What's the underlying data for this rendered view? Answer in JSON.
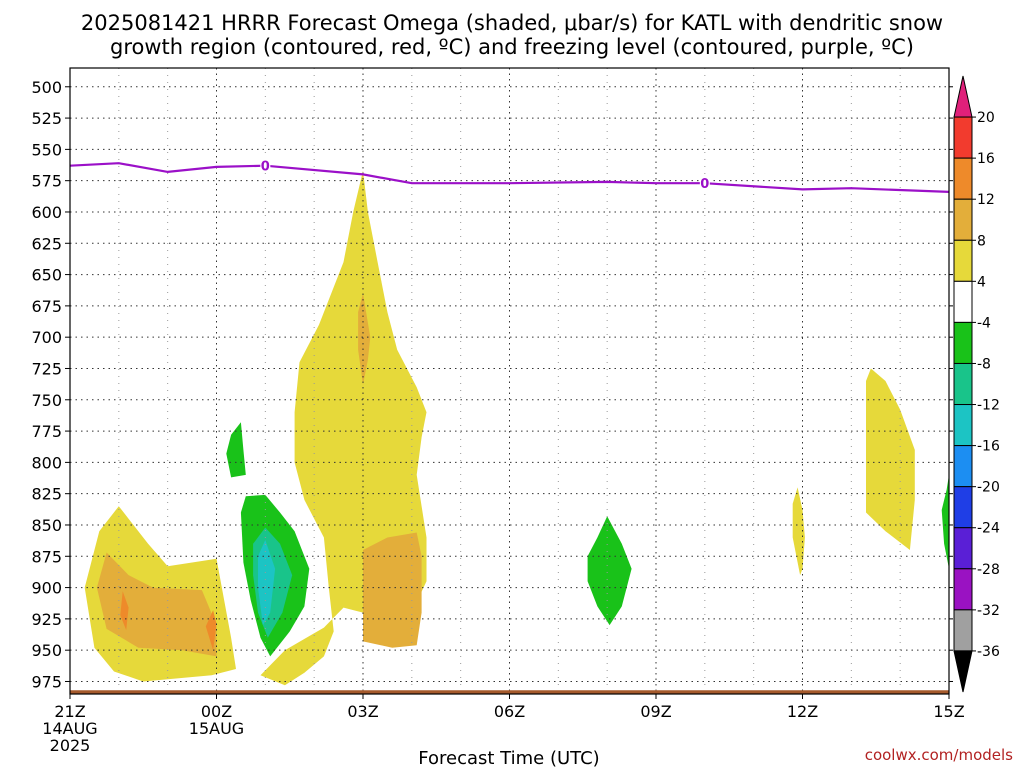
{
  "chart_data": {
    "type": "heatmap",
    "title_lines": [
      "2025081421 HRRR Forecast Omega (shaded, μbar/s) for KATL with dendritic snow",
      "growth region (contoured, red, ºC) and freezing level (contoured, purple, ºC)"
    ],
    "xlabel": "Forecast Time (UTC)",
    "credit": "coolwx.com/models",
    "x_ticks": [
      {
        "h": 0,
        "lines": [
          "21Z",
          "14AUG",
          "2025"
        ]
      },
      {
        "h": 3,
        "lines": [
          "00Z",
          "15AUG"
        ]
      },
      {
        "h": 6,
        "lines": [
          "03Z"
        ]
      },
      {
        "h": 9,
        "lines": [
          "06Z"
        ]
      },
      {
        "h": 12,
        "lines": [
          "09Z"
        ]
      },
      {
        "h": 15,
        "lines": [
          "12Z"
        ]
      },
      {
        "h": 18,
        "lines": [
          "15Z"
        ]
      }
    ],
    "y_ticks": [
      500,
      525,
      550,
      575,
      600,
      625,
      650,
      675,
      700,
      725,
      750,
      775,
      800,
      825,
      850,
      875,
      900,
      925,
      950,
      975
    ],
    "xlim_hours": [
      0,
      18
    ],
    "ylim_hpa": [
      485,
      985
    ],
    "grid": true,
    "colorbar": {
      "labels": [
        "20",
        "16",
        "12",
        "8",
        "4",
        "-4",
        "-8",
        "-12",
        "-16",
        "-20",
        "-24",
        "-28",
        "-32",
        "-36"
      ],
      "colors": [
        "#e0207a",
        "#f23b2e",
        "#ee8a2a",
        "#e3ae3a",
        "#e6d93a",
        "#ffffff",
        "#19c219",
        "#19c48a",
        "#1cc4c4",
        "#1c8ef2",
        "#1f3ee6",
        "#5a1fd6",
        "#9a12c2",
        "#a0a0a0",
        "#000000"
      ]
    },
    "freezing_level": {
      "color": "#9b10c8",
      "label": "0",
      "points": [
        [
          0,
          563
        ],
        [
          1,
          561
        ],
        [
          2,
          568
        ],
        [
          3,
          564
        ],
        [
          4,
          563
        ],
        [
          6,
          570
        ],
        [
          7,
          577
        ],
        [
          9,
          577
        ],
        [
          11,
          576
        ],
        [
          12,
          577
        ],
        [
          13,
          577
        ],
        [
          15,
          582
        ],
        [
          16,
          581
        ],
        [
          18,
          584
        ]
      ],
      "label_points": [
        [
          4,
          563
        ],
        [
          13,
          577
        ]
      ]
    },
    "omega_regions": [
      {
        "level": "4 to 8",
        "color": "#e6d93a",
        "points": [
          [
            0.3,
            900
          ],
          [
            0.6,
            855
          ],
          [
            1,
            835
          ],
          [
            1.6,
            865
          ],
          [
            2,
            883
          ],
          [
            3,
            877
          ],
          [
            3.3,
            940
          ],
          [
            3.4,
            965
          ],
          [
            2.9,
            970
          ],
          [
            1.5,
            975
          ],
          [
            0.9,
            967
          ],
          [
            0.5,
            948
          ]
        ]
      },
      {
        "level": "8 to 12",
        "color": "#e3ae3a",
        "points": [
          [
            0.55,
            900
          ],
          [
            0.75,
            872
          ],
          [
            1.2,
            890
          ],
          [
            1.7,
            900
          ],
          [
            2.7,
            902
          ],
          [
            3,
            930
          ],
          [
            3,
            955
          ],
          [
            2.3,
            950
          ],
          [
            1.4,
            948
          ],
          [
            0.75,
            933
          ]
        ]
      },
      {
        "level": "12 to 16",
        "color": "#ee8a2a",
        "points": [
          [
            1.08,
            903
          ],
          [
            1.2,
            916
          ],
          [
            1.15,
            934
          ],
          [
            1.03,
            922
          ]
        ]
      },
      {
        "level": "12 to 16",
        "color": "#ee8a2a",
        "points": [
          [
            2.93,
            918
          ],
          [
            3,
            929
          ],
          [
            2.93,
            950
          ],
          [
            2.78,
            931
          ]
        ]
      },
      {
        "level": "4 to 8",
        "color": "#e6d93a",
        "points": [
          [
            3.9,
            970
          ],
          [
            4.4,
            950
          ],
          [
            5.2,
            932
          ],
          [
            5.6,
            916
          ],
          [
            6,
            920
          ],
          [
            6.4,
            935
          ],
          [
            6.9,
            928
          ],
          [
            7.3,
            895
          ],
          [
            7.3,
            860
          ],
          [
            7.2,
            835
          ],
          [
            7.1,
            810
          ],
          [
            7.2,
            780
          ],
          [
            7.3,
            760
          ],
          [
            7.1,
            740
          ],
          [
            6.7,
            710
          ],
          [
            6.5,
            680
          ],
          [
            6.3,
            640
          ],
          [
            6.1,
            600
          ],
          [
            6,
            567
          ],
          [
            5.8,
            600
          ],
          [
            5.6,
            640
          ],
          [
            5.1,
            690
          ],
          [
            4.7,
            720
          ],
          [
            4.6,
            760
          ],
          [
            4.6,
            800
          ],
          [
            4.8,
            830
          ],
          [
            5.2,
            860
          ],
          [
            5.3,
            900
          ],
          [
            5.4,
            935
          ],
          [
            5.2,
            955
          ],
          [
            4.8,
            968
          ],
          [
            4.4,
            978
          ]
        ]
      },
      {
        "level": "8 to 12",
        "color": "#e3ae3a",
        "points": [
          [
            5.9,
            680
          ],
          [
            6,
            665
          ],
          [
            6.15,
            700
          ],
          [
            6.1,
            718
          ],
          [
            6,
            738
          ],
          [
            5.9,
            710
          ]
        ]
      },
      {
        "level": "8 to 12",
        "color": "#e3ae3a",
        "points": [
          [
            6,
            870
          ],
          [
            6.5,
            860
          ],
          [
            7.1,
            856
          ],
          [
            7.2,
            875
          ],
          [
            7.2,
            920
          ],
          [
            7.1,
            946
          ],
          [
            6.6,
            948
          ],
          [
            6,
            943
          ]
        ]
      },
      {
        "level": "4 to 8",
        "color": "#e6d93a",
        "points": [
          [
            14.8,
            833
          ],
          [
            14.9,
            820
          ],
          [
            15,
            838
          ],
          [
            15.05,
            860
          ],
          [
            15,
            885
          ],
          [
            14.95,
            890
          ],
          [
            14.8,
            860
          ]
        ]
      },
      {
        "level": "4 to 8",
        "color": "#e6d93a",
        "points": [
          [
            16.3,
            735
          ],
          [
            16.4,
            725
          ],
          [
            16.7,
            735
          ],
          [
            17,
            758
          ],
          [
            17.3,
            790
          ],
          [
            17.3,
            830
          ],
          [
            17.2,
            870
          ],
          [
            16.7,
            855
          ],
          [
            16.3,
            840
          ]
        ]
      },
      {
        "level": "-4 to -8",
        "color": "#19c219",
        "points": [
          [
            3.2,
            793
          ],
          [
            3.3,
            778
          ],
          [
            3.5,
            768
          ],
          [
            3.55,
            790
          ],
          [
            3.6,
            810
          ],
          [
            3.3,
            812
          ]
        ]
      },
      {
        "level": "-4 to -8",
        "color": "#19c219",
        "points": [
          [
            3.5,
            840
          ],
          [
            3.6,
            827
          ],
          [
            4,
            826
          ],
          [
            4.3,
            840
          ],
          [
            4.6,
            855
          ],
          [
            4.9,
            885
          ],
          [
            4.8,
            915
          ],
          [
            4.5,
            935
          ],
          [
            4.1,
            955
          ],
          [
            3.9,
            940
          ],
          [
            3.7,
            910
          ],
          [
            3.55,
            880
          ]
        ]
      },
      {
        "level": "-8 to -12",
        "color": "#19c48a",
        "points": [
          [
            3.75,
            865
          ],
          [
            4,
            852
          ],
          [
            4.3,
            865
          ],
          [
            4.55,
            890
          ],
          [
            4.35,
            920
          ],
          [
            4.05,
            940
          ],
          [
            3.85,
            920
          ],
          [
            3.75,
            890
          ]
        ]
      },
      {
        "level": "-12 to -16",
        "color": "#1cc4c4",
        "points": [
          [
            3.85,
            875
          ],
          [
            4,
            862
          ],
          [
            4.2,
            885
          ],
          [
            4.1,
            920
          ],
          [
            3.95,
            930
          ],
          [
            3.85,
            900
          ]
        ]
      },
      {
        "level": "-4 to -8",
        "color": "#19c219",
        "points": [
          [
            10.6,
            875
          ],
          [
            10.8,
            860
          ],
          [
            11,
            843
          ],
          [
            11.3,
            865
          ],
          [
            11.5,
            885
          ],
          [
            11.3,
            915
          ],
          [
            11.05,
            930
          ],
          [
            10.8,
            915
          ],
          [
            10.6,
            895
          ]
        ]
      },
      {
        "level": "-4 to -8",
        "color": "#19c219",
        "points": [
          [
            18,
            810
          ],
          [
            17.95,
            822
          ],
          [
            17.85,
            838
          ],
          [
            17.9,
            865
          ],
          [
            18,
            885
          ]
        ]
      }
    ],
    "terrain": {
      "color": "#a55a2c",
      "top_hpa": 982
    }
  }
}
